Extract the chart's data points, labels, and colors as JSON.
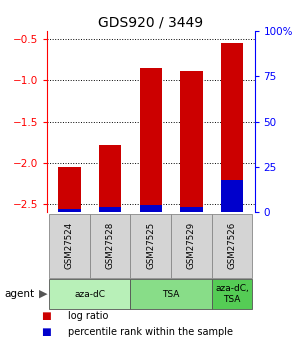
{
  "title": "GDS920 / 3449",
  "samples": [
    "GSM27524",
    "GSM27528",
    "GSM27525",
    "GSM27529",
    "GSM27526"
  ],
  "log_ratios": [
    -2.05,
    -1.78,
    -0.85,
    -0.88,
    -0.55
  ],
  "percentile_ranks": [
    2,
    3,
    4,
    3,
    18
  ],
  "bar_color": "#cc0000",
  "pct_color": "#0000cc",
  "agent_groups": [
    {
      "label": "aza-dC",
      "start": 0,
      "end": 2,
      "color": "#b8f0b8"
    },
    {
      "label": "TSA",
      "start": 2,
      "end": 4,
      "color": "#88dd88"
    },
    {
      "label": "aza-dC,\nTSA",
      "start": 4,
      "end": 5,
      "color": "#55cc55"
    }
  ],
  "ylim_left": [
    -2.6,
    -0.4
  ],
  "ylim_right": [
    0,
    100
  ],
  "left_ticks": [
    -2.5,
    -2.0,
    -1.5,
    -1.0,
    -0.5
  ],
  "right_ticks": [
    0,
    25,
    50,
    75,
    100
  ],
  "right_tick_labels": [
    "0",
    "25",
    "50",
    "75",
    "100%"
  ],
  "legend_items": [
    {
      "label": "log ratio",
      "color": "#cc0000"
    },
    {
      "label": "percentile rank within the sample",
      "color": "#0000cc"
    }
  ],
  "bar_width": 0.55,
  "title_fontsize": 10,
  "tick_fontsize": 7.5,
  "legend_fontsize": 7
}
